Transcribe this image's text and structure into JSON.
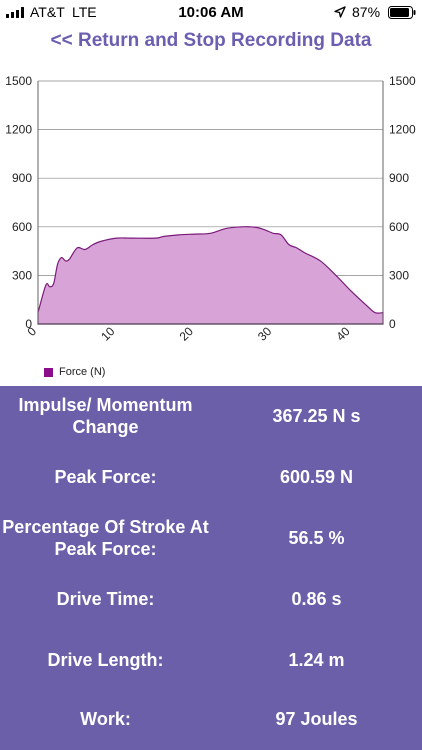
{
  "status_bar": {
    "carrier": "AT&T",
    "network": "LTE",
    "time": "10:06 AM",
    "battery": "87%",
    "icons": [
      "signal-bars-icon",
      "location-arrow-icon",
      "battery-icon"
    ]
  },
  "nav": {
    "return_label": "<< Return and Stop Recording Data"
  },
  "colors": {
    "accent": "#6a5fb0",
    "panel": "#6a5fa8",
    "force_line": "#7a1a7a",
    "force_fill": "#d8a4d8",
    "legend": "#8b0d8b"
  },
  "chart_data": {
    "type": "area",
    "series": [
      {
        "name": "Force (N)",
        "x": [
          0,
          1,
          1.5,
          2,
          2.5,
          3,
          3.5,
          4,
          5,
          6,
          7,
          8,
          10,
          12,
          15,
          16,
          18,
          20,
          22,
          24,
          26,
          27,
          28,
          29,
          30,
          31,
          32,
          33,
          34,
          36,
          38,
          40,
          42,
          43,
          44
        ],
        "values": [
          70,
          240,
          230,
          250,
          370,
          410,
          390,
          400,
          470,
          460,
          490,
          510,
          530,
          530,
          530,
          540,
          550,
          555,
          560,
          590,
          600,
          600,
          595,
          580,
          560,
          550,
          490,
          470,
          440,
          390,
          300,
          200,
          110,
          70,
          70
        ]
      }
    ],
    "xlim": [
      0,
      44
    ],
    "ylim": [
      0,
      1500
    ],
    "x_ticks": [
      "0",
      "10",
      "20",
      "30",
      "40"
    ],
    "x_tick_values": [
      0,
      10,
      20,
      30,
      40
    ],
    "y_ticks": [
      "0",
      "300",
      "600",
      "900",
      "1200",
      "1500"
    ],
    "y_tick_values": [
      0,
      300,
      600,
      900,
      1200,
      1500
    ],
    "y_axis_right": true,
    "grid": "horizontal",
    "legend": "bottom-left"
  },
  "stats": [
    {
      "label": "Impulse/ Momentum Change",
      "value": "367.25 N s"
    },
    {
      "label": "Peak Force:",
      "value": "600.59 N"
    },
    {
      "label": "Percentage Of Stroke At Peak Force:",
      "value": "56.5 %"
    },
    {
      "label": "Drive Time:",
      "value": "0.86 s"
    },
    {
      "label": "Drive Length:",
      "value": "1.24 m"
    },
    {
      "label": "Work:",
      "value": "97 Joules"
    }
  ]
}
